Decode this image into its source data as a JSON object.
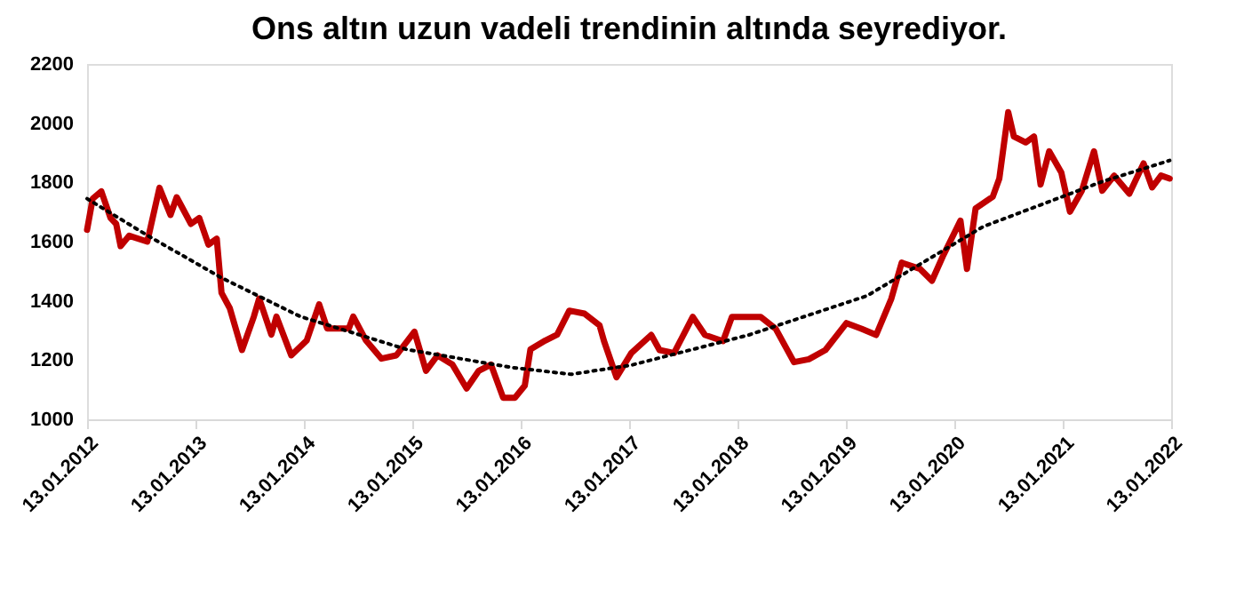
{
  "chart_data": {
    "type": "line",
    "title": "Ons altın uzun vadeli trendinin altında seyrediyor.",
    "xlim": [
      "2012-01-13",
      "2022-01-13"
    ],
    "xticks": [
      {
        "value": "2012-01-13",
        "label": "13.01.2012"
      },
      {
        "value": "2013-01-13",
        "label": "13.01.2013"
      },
      {
        "value": "2014-01-13",
        "label": "13.01.2014"
      },
      {
        "value": "2015-01-13",
        "label": "13.01.2015"
      },
      {
        "value": "2016-01-13",
        "label": "13.01.2016"
      },
      {
        "value": "2017-01-13",
        "label": "13.01.2017"
      },
      {
        "value": "2018-01-13",
        "label": "13.01.2018"
      },
      {
        "value": "2019-01-13",
        "label": "13.01.2019"
      },
      {
        "value": "2020-01-13",
        "label": "13.01.2020"
      },
      {
        "value": "2021-01-13",
        "label": "13.01.2021"
      },
      {
        "value": "2022-01-13",
        "label": "13.01.2022"
      }
    ],
    "ylim": [
      1000,
      2200
    ],
    "yticks": [
      1000,
      1200,
      1400,
      1600,
      1800,
      2000,
      2200
    ],
    "grid": false,
    "series": [
      {
        "color": "#c00000",
        "line_style": "solid",
        "x": [
          "2012-01-13",
          "2012-02-01",
          "2012-03-01",
          "2012-04-01",
          "2012-04-20",
          "2012-05-05",
          "2012-06-03",
          "2012-08-03",
          "2012-09-13",
          "2012-10-20",
          "2012-11-10",
          "2012-12-28",
          "2013-01-25",
          "2013-02-25",
          "2013-03-25",
          "2013-04-10",
          "2013-05-08",
          "2013-06-18",
          "2013-07-28",
          "2013-08-15",
          "2013-09-25",
          "2013-10-12",
          "2013-12-01",
          "2014-01-22",
          "2014-03-05",
          "2014-04-01",
          "2014-06-13",
          "2014-06-28",
          "2014-08-10",
          "2014-10-01",
          "2014-11-20",
          "2015-01-20",
          "2015-02-28",
          "2015-04-08",
          "2015-05-28",
          "2015-07-15",
          "2015-08-25",
          "2015-10-05",
          "2015-11-15",
          "2015-12-25",
          "2016-01-27",
          "2016-02-15",
          "2016-04-05",
          "2016-05-15",
          "2016-06-25",
          "2016-08-15",
          "2016-10-05",
          "2016-10-20",
          "2016-12-01",
          "2017-01-20",
          "2017-03-28",
          "2017-04-25",
          "2017-06-13",
          "2017-08-15",
          "2017-09-25",
          "2017-11-25",
          "2017-12-25",
          "2018-02-03",
          "2018-04-01",
          "2018-05-22",
          "2018-07-22",
          "2018-09-10",
          "2018-11-05",
          "2019-01-15",
          "2019-03-08",
          "2019-04-25",
          "2019-06-15",
          "2019-07-20",
          "2019-09-20",
          "2019-10-30",
          "2019-12-05",
          "2020-02-03",
          "2020-02-25",
          "2020-03-25",
          "2020-05-22",
          "2020-06-13",
          "2020-07-13",
          "2020-08-01",
          "2020-09-10",
          "2020-10-08",
          "2020-10-30",
          "2020-11-28",
          "2021-01-08",
          "2021-02-06",
          "2021-03-18",
          "2021-04-28",
          "2021-05-26",
          "2021-07-05",
          "2021-08-25",
          "2021-10-12",
          "2021-11-10",
          "2021-12-10",
          "2022-01-08"
        ],
        "values": [
          1640,
          1745,
          1770,
          1680,
          1660,
          1585,
          1620,
          1600,
          1782,
          1690,
          1750,
          1660,
          1680,
          1590,
          1610,
          1427,
          1375,
          1234,
          1347,
          1408,
          1286,
          1347,
          1216,
          1266,
          1388,
          1307,
          1307,
          1347,
          1266,
          1205,
          1216,
          1296,
          1164,
          1216,
          1185,
          1104,
          1164,
          1185,
          1073,
          1073,
          1114,
          1236,
          1266,
          1286,
          1367,
          1357,
          1317,
          1264,
          1142,
          1224,
          1285,
          1234,
          1224,
          1346,
          1285,
          1264,
          1346,
          1346,
          1346,
          1305,
          1193,
          1203,
          1234,
          1325,
          1305,
          1285,
          1407,
          1529,
          1508,
          1468,
          1549,
          1671,
          1508,
          1712,
          1752,
          1813,
          2037,
          1955,
          1935,
          1955,
          1793,
          1905,
          1833,
          1701,
          1772,
          1905,
          1772,
          1823,
          1762,
          1864,
          1783,
          1823,
          1813
        ]
      },
      {
        "type": "line",
        "color": "#000000",
        "line_style": "dotted",
        "x": [
          "2012-01-13",
          "2012-08-05",
          "2013-04-10",
          "2014-01-01",
          "2014-12-25",
          "2015-12-15",
          "2016-07-01",
          "2017-01-20",
          "2018-02-20",
          "2019-03-25",
          "2020-04-20",
          "2021-05-26",
          "2022-01-08"
        ],
        "values": [
          1745,
          1620,
          1478,
          1347,
          1236,
          1175,
          1152,
          1183,
          1285,
          1417,
          1651,
          1803,
          1874
        ]
      }
    ]
  }
}
